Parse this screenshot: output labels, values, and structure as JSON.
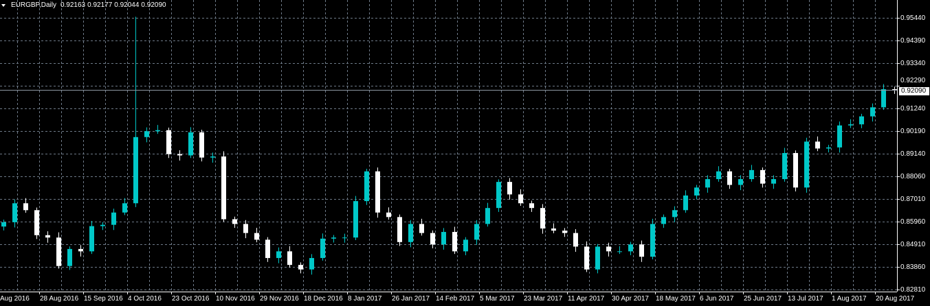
{
  "header": {
    "symbol_timeframe": "EURGBP,Daily",
    "open": "0.92163",
    "high": "0.92177",
    "low": "0.92044",
    "close": "0.92090",
    "menu_icon": "triangle-down-icon"
  },
  "current_price_label": "0.92090",
  "colors": {
    "background": "#000000",
    "bull": "#00c8c8",
    "bear": "#ffffff",
    "grid": "#6f7b89",
    "axis": "#ffffff",
    "price_line": "#8e97a3"
  },
  "chart_data": {
    "type": "candlestick",
    "title": "EURGBP,Daily",
    "grid": true,
    "ylim": [
      0.8281,
      0.9544
    ],
    "y_tick_labels": [
      "0.95440",
      "0.94390",
      "0.93340",
      "0.92290",
      "0.91240",
      "0.90190",
      "0.89140",
      "0.88060",
      "0.87010",
      "0.85960",
      "0.84910",
      "0.83860",
      "0.82810"
    ],
    "x_tick_labels": [
      "Aug 2016",
      "28 Aug 2016",
      "15 Sep 2016",
      "4 Oct 2016",
      "23 Oct 2016",
      "10 Nov 2016",
      "29 Nov 2016",
      "18 Dec 2016",
      "8 Jan 2017",
      "26 Jan 2017",
      "14 Feb 2017",
      "5 Mar 2017",
      "23 Mar 2017",
      "11 Apr 2017",
      "30 Apr 2017",
      "18 May 2017",
      "6 Jun 2017",
      "25 Jun 2017",
      "13 Jul 2017",
      "1 Aug 2017",
      "20 Aug 2017"
    ],
    "current_price": 0.9209,
    "spike_high": 0.9549,
    "closes": [
      0.8596,
      0.8684,
      0.8652,
      0.8536,
      0.8525,
      0.8393,
      0.8472,
      0.8461,
      0.8578,
      0.8584,
      0.8641,
      0.8684,
      0.8991,
      0.9018,
      0.9023,
      0.8912,
      0.8906,
      0.9013,
      0.8896,
      0.8901,
      0.861,
      0.8588,
      0.8546,
      0.8515,
      0.843,
      0.8461,
      0.8398,
      0.8377,
      0.843,
      0.852,
      0.8525,
      0.8525,
      0.8694,
      0.8832,
      0.8641,
      0.862,
      0.8504,
      0.8588,
      0.8546,
      0.8493,
      0.8551,
      0.8461,
      0.8515,
      0.8588,
      0.8662,
      0.8783,
      0.8725,
      0.8684,
      0.8662,
      0.8567,
      0.8557,
      0.8546,
      0.8483,
      0.8377,
      0.8483,
      0.8461,
      0.8461,
      0.8493,
      0.8436,
      0.8588,
      0.862,
      0.8652,
      0.872,
      0.8757,
      0.8796,
      0.8832,
      0.8769,
      0.8796,
      0.8838,
      0.8775,
      0.8796,
      0.8917,
      0.8757,
      0.897,
      0.8938,
      0.8943,
      0.9045,
      0.905,
      0.9087,
      0.9129,
      0.9213,
      0.9209
    ]
  }
}
